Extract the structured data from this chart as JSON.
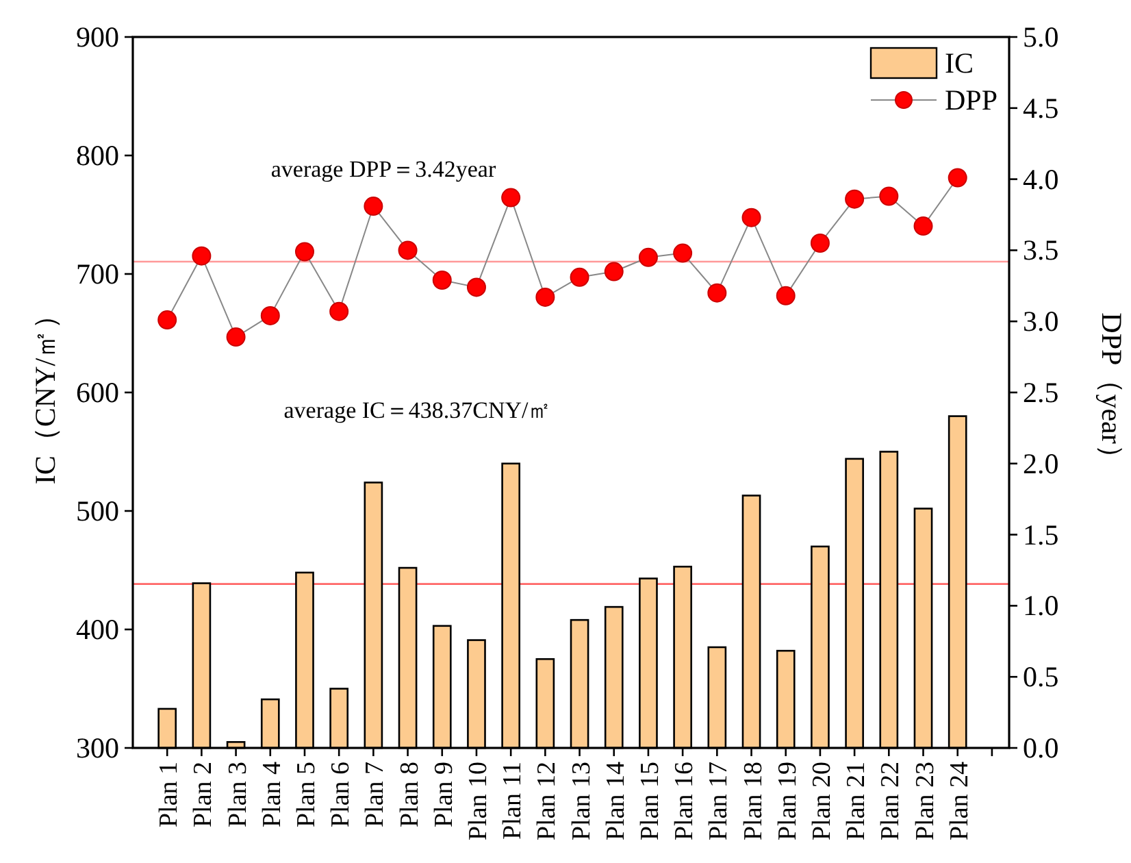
{
  "chart_data": {
    "type": "bar",
    "categories": [
      "Plan 1",
      "Plan 2",
      "Plan 3",
      "Plan 4",
      "Plan 5",
      "Plan 6",
      "Plan 7",
      "Plan 8",
      "Plan 9",
      "Plan 10",
      "Plan 11",
      "Plan 12",
      "Plan 13",
      "Plan 14",
      "Plan 15",
      "Plan 16",
      "Plan 17",
      "Plan 18",
      "Plan 19",
      "Plan 20",
      "Plan 21",
      "Plan 22",
      "Plan 23",
      "Plan 24",
      null
    ],
    "series": [
      {
        "name": "IC",
        "color": "#fdcb8f",
        "values": [
          333,
          439,
          305,
          341,
          448,
          350,
          524,
          452,
          403,
          391,
          540,
          375,
          408,
          419,
          443,
          453,
          385,
          513,
          382,
          470,
          544,
          550,
          502,
          580,
          null
        ]
      },
      {
        "name": "DPP",
        "type": "line",
        "axis": "y2",
        "color": "#ff0000",
        "values": [
          3.01,
          3.46,
          2.89,
          3.04,
          3.49,
          3.07,
          3.81,
          3.5,
          3.29,
          3.24,
          3.87,
          3.17,
          3.31,
          3.35,
          3.45,
          3.48,
          3.2,
          3.73,
          3.18,
          3.55,
          3.86,
          3.88,
          3.67,
          4.01,
          null
        ]
      }
    ],
    "ylabel": "IC（CNY/㎡）",
    "y2label": "DPP（year）",
    "ylim": [
      300,
      900
    ],
    "yticks": [
      300,
      400,
      500,
      600,
      700,
      800,
      900
    ],
    "y2lim": [
      0,
      5
    ],
    "y2ticks": [
      {
        "value": 0,
        "label": "0.0"
      },
      {
        "value": 0.5,
        "label": "0.5"
      },
      {
        "value": 1,
        "label": "1.0"
      },
      {
        "value": 1.5,
        "label": "1.5"
      },
      {
        "value": 2,
        "label": "2.0"
      },
      {
        "value": 2.5,
        "label": "2.5"
      },
      {
        "value": 3,
        "label": "3.0"
      },
      {
        "value": 3.5,
        "label": "3.5"
      },
      {
        "value": 4,
        "label": "4.0"
      },
      {
        "value": 4.5,
        "label": "4.5"
      },
      {
        "value": 5,
        "label": "5.0"
      }
    ],
    "ref_lines": [
      {
        "axis": "y",
        "value": 438.37,
        "color": "#ff6666"
      },
      {
        "axis": "y2",
        "value": 3.42,
        "color": "#ff9999"
      }
    ],
    "annotations": [
      "average DPP＝3.42year",
      "average IC＝438.37CNY/㎡"
    ],
    "marker": "circle",
    "legend": "top right",
    "grid": false
  }
}
